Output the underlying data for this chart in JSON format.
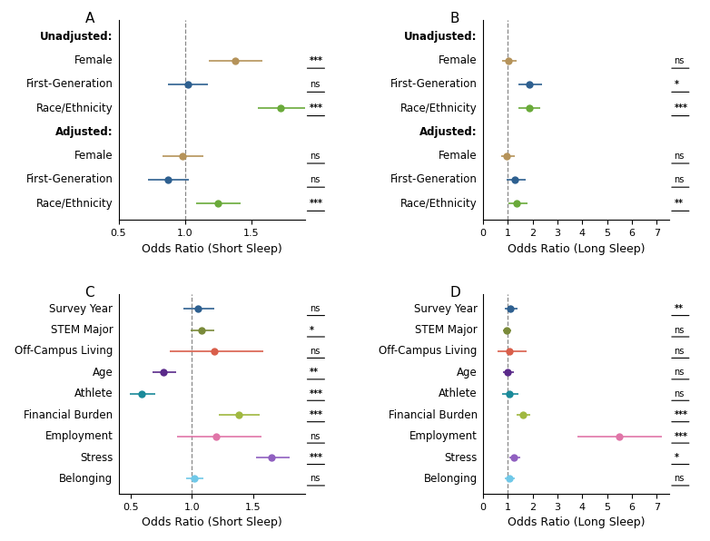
{
  "panel_A": {
    "title": "A",
    "xlabel": "Odds Ratio (Short Sleep)",
    "xlim": [
      0.5,
      1.9
    ],
    "xticks": [
      0.5,
      1.0,
      1.5
    ],
    "vline": 1.0,
    "labels": [
      "Unadjusted:",
      "Female",
      "First-Generation",
      "Race/Ethnicity",
      "Adjusted:",
      "Female",
      "First-Generation",
      "Race/Ethnicity"
    ],
    "is_header": [
      true,
      false,
      false,
      false,
      true,
      false,
      false,
      false
    ],
    "values": [
      null,
      1.38,
      1.02,
      1.72,
      null,
      0.98,
      0.87,
      1.25
    ],
    "ci_low": [
      null,
      1.18,
      0.87,
      1.55,
      null,
      0.83,
      0.72,
      1.08
    ],
    "ci_high": [
      null,
      1.58,
      1.17,
      1.9,
      null,
      1.14,
      1.03,
      1.42
    ],
    "colors": [
      null,
      "#b5935a",
      "#2e6090",
      "#6aaa3a",
      null,
      "#b5935a",
      "#2e6090",
      "#6aaa3a"
    ],
    "sig": [
      null,
      "***",
      "ns",
      "***",
      null,
      "ns",
      "ns",
      "***"
    ]
  },
  "panel_B": {
    "title": "B",
    "xlabel": "Odds Ratio (Long Sleep)",
    "xlim": [
      0,
      7.5
    ],
    "xticks": [
      0,
      1,
      2,
      3,
      4,
      5,
      6,
      7
    ],
    "vline": 1.0,
    "labels": [
      "Unadjusted:",
      "Female",
      "First-Generation",
      "Race/Ethnicity",
      "Adjusted:",
      "Female",
      "First-Generation",
      "Race/Ethnicity"
    ],
    "is_header": [
      true,
      false,
      false,
      false,
      true,
      false,
      false,
      false
    ],
    "values": [
      null,
      1.02,
      1.85,
      1.85,
      null,
      0.97,
      1.28,
      1.35
    ],
    "ci_low": [
      null,
      0.78,
      1.42,
      1.42,
      null,
      0.72,
      0.95,
      1.02
    ],
    "ci_high": [
      null,
      1.35,
      2.38,
      2.3,
      null,
      1.3,
      1.72,
      1.78
    ],
    "colors": [
      null,
      "#b5935a",
      "#2e6090",
      "#6aaa3a",
      null,
      "#b5935a",
      "#2e6090",
      "#6aaa3a"
    ],
    "sig": [
      null,
      "ns",
      "*",
      "***",
      null,
      "ns",
      "ns",
      "**"
    ]
  },
  "panel_C": {
    "title": "C",
    "xlabel": "Odds Ratio (Short Sleep)",
    "xlim": [
      0.4,
      1.92
    ],
    "xticks": [
      0.5,
      1.0,
      1.5
    ],
    "vline": 1.0,
    "labels": [
      "Survey Year",
      "STEM Major",
      "Off-Campus Living",
      "Age",
      "Athlete",
      "Financial Burden",
      "Employment",
      "Stress",
      "Belonging"
    ],
    "is_header": [
      false,
      false,
      false,
      false,
      false,
      false,
      false,
      false,
      false
    ],
    "values": [
      1.05,
      1.08,
      1.18,
      0.77,
      0.59,
      1.38,
      1.2,
      1.65,
      1.02
    ],
    "ci_low": [
      0.93,
      0.99,
      0.82,
      0.68,
      0.49,
      1.22,
      0.88,
      1.52,
      0.95
    ],
    "ci_high": [
      1.18,
      1.18,
      1.58,
      0.87,
      0.7,
      1.55,
      1.57,
      1.8,
      1.09
    ],
    "colors": [
      "#2e6090",
      "#7a8a3a",
      "#d95f4b",
      "#5a2a8a",
      "#1a8a9a",
      "#a0b840",
      "#e075a8",
      "#9060c0",
      "#70c8e8"
    ],
    "sig": [
      "ns",
      "*",
      "ns",
      "**",
      "***",
      "***",
      "ns",
      "***",
      "ns"
    ]
  },
  "panel_D": {
    "title": "D",
    "xlabel": "Odds Ratio (Long Sleep)",
    "xlim": [
      0,
      7.5
    ],
    "xticks": [
      0,
      1,
      2,
      3,
      4,
      5,
      6,
      7
    ],
    "vline": 1.0,
    "labels": [
      "Survey Year",
      "STEM Major",
      "Off-Campus Living",
      "Age",
      "Athlete",
      "Financial Burden",
      "Employment",
      "Stress",
      "Belonging"
    ],
    "is_header": [
      false,
      false,
      false,
      false,
      false,
      false,
      false,
      false,
      false
    ],
    "values": [
      1.1,
      0.95,
      1.05,
      1.0,
      1.05,
      1.6,
      5.5,
      1.25,
      1.05
    ],
    "ci_low": [
      0.88,
      0.82,
      0.6,
      0.8,
      0.78,
      1.35,
      3.8,
      1.05,
      0.88
    ],
    "ci_high": [
      1.38,
      1.12,
      1.75,
      1.25,
      1.42,
      1.9,
      7.2,
      1.5,
      1.28
    ],
    "colors": [
      "#2e6090",
      "#7a8a3a",
      "#d95f4b",
      "#5a2a8a",
      "#1a8a9a",
      "#a0b840",
      "#e075a8",
      "#9060c0",
      "#70c8e8"
    ],
    "sig": [
      "**",
      "ns",
      "ns",
      "ns",
      "ns",
      "***",
      "***",
      "*",
      "ns"
    ]
  }
}
